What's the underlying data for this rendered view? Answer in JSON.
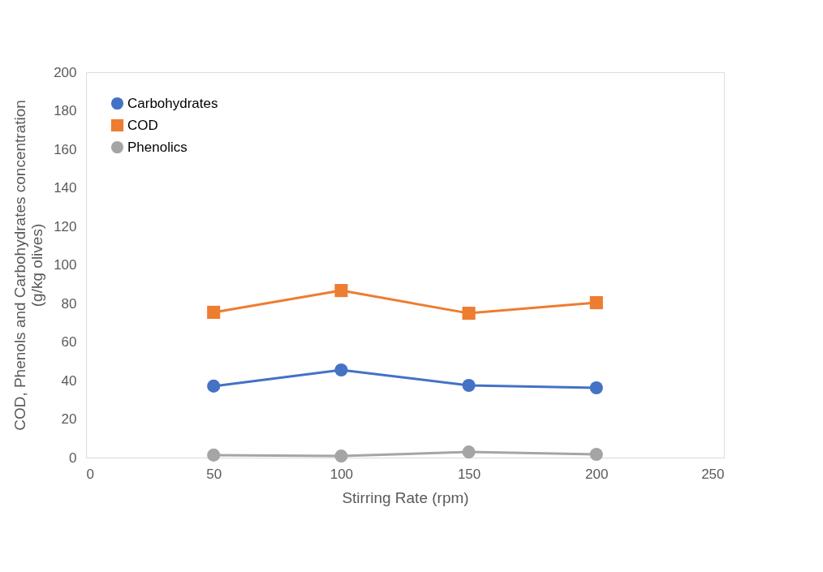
{
  "chart_data": {
    "type": "line",
    "xlabel": "Stirring Rate (rpm)",
    "ylabel": "COD, Phenols and Carbohydrates concentration\n(g/kg olives)",
    "x": [
      50,
      100,
      150,
      200
    ],
    "series": [
      {
        "name": "Carbohydrates",
        "color": "#4472c4",
        "marker": "circle",
        "values": [
          37.1,
          45.5,
          37.5,
          36.2
        ]
      },
      {
        "name": "COD",
        "color": "#ed7d31",
        "marker": "square",
        "values": [
          75.4,
          86.7,
          74.9,
          80.4
        ]
      },
      {
        "name": "Phenolics",
        "color": "#a5a5a5",
        "marker": "circle",
        "values": [
          1.3,
          0.8,
          2.9,
          1.7
        ]
      }
    ],
    "xlim": [
      0,
      250
    ],
    "xticks": [
      0,
      50,
      100,
      150,
      200,
      250
    ],
    "ylim": [
      0,
      200
    ],
    "yticks": [
      0,
      20,
      40,
      60,
      80,
      100,
      120,
      140,
      160,
      180,
      200
    ],
    "grid": false,
    "legend": "top left",
    "line_style": "solid"
  }
}
